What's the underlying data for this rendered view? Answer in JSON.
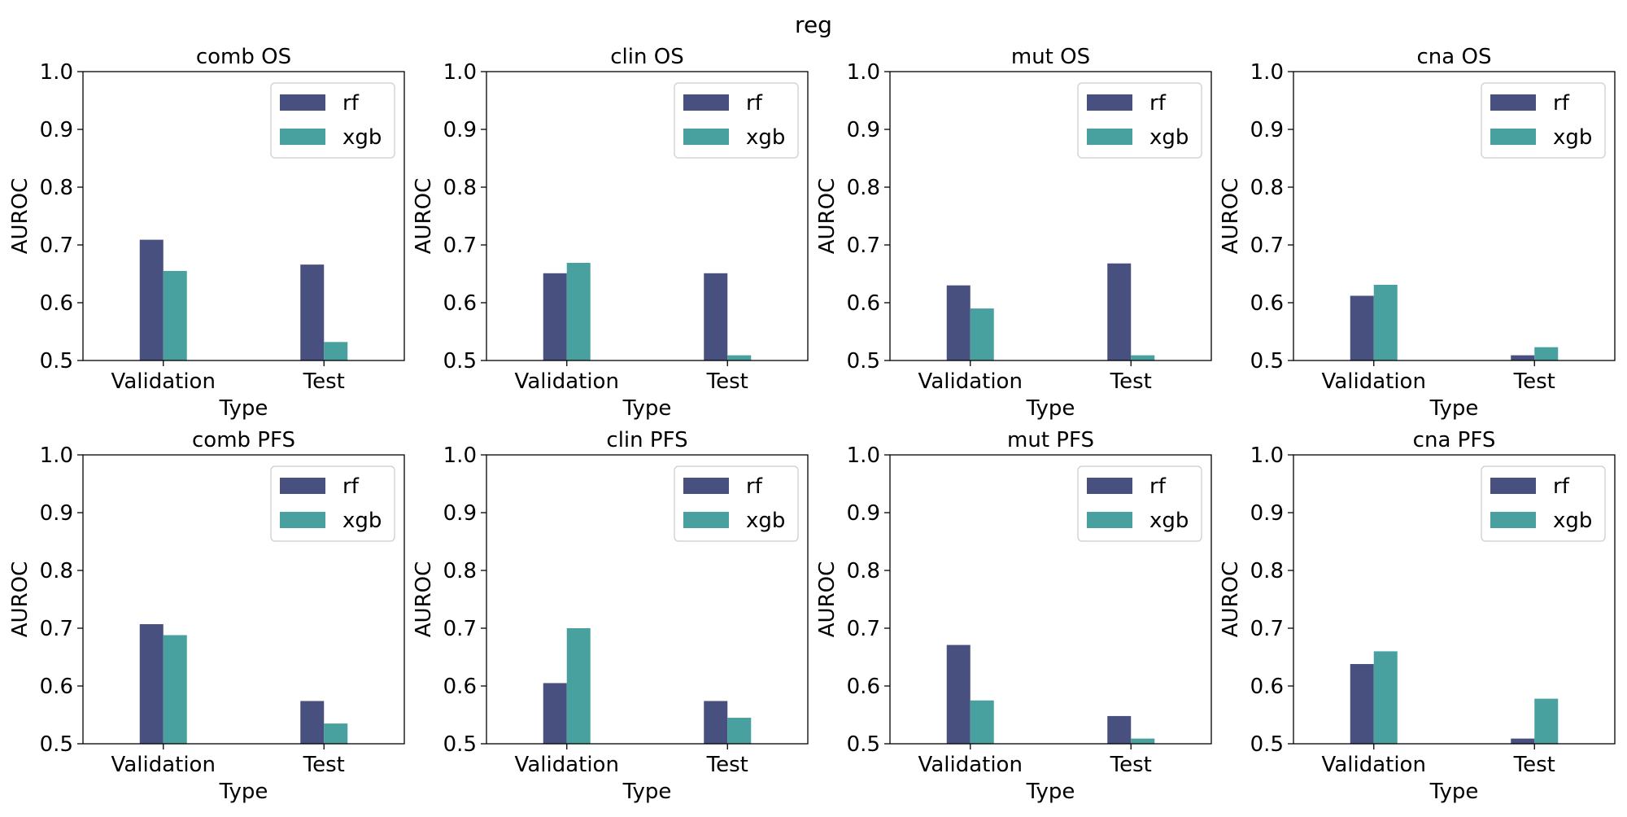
{
  "figure": {
    "suptitle": "reg",
    "colors": {
      "rf": "#48507f",
      "xgb": "#48a09f"
    }
  },
  "chart_data": [
    {
      "type": "bar",
      "title": "comb OS",
      "xlabel": "Type",
      "ylabel": "AUROC",
      "ylim": [
        0.5,
        1.0
      ],
      "yticks": [
        "0.5",
        "0.6",
        "0.7",
        "0.8",
        "0.9",
        "1.0"
      ],
      "categories": [
        "Validation",
        "Test"
      ],
      "legend": "top-right",
      "series": [
        {
          "name": "rf",
          "values": [
            0.709,
            0.666
          ]
        },
        {
          "name": "xgb",
          "values": [
            0.655,
            0.532
          ]
        }
      ]
    },
    {
      "type": "bar",
      "title": "clin OS",
      "xlabel": "Type",
      "ylabel": "AUROC",
      "ylim": [
        0.5,
        1.0
      ],
      "yticks": [
        "0.5",
        "0.6",
        "0.7",
        "0.8",
        "0.9",
        "1.0"
      ],
      "categories": [
        "Validation",
        "Test"
      ],
      "legend": "top-right",
      "series": [
        {
          "name": "rf",
          "values": [
            0.651,
            0.651
          ]
        },
        {
          "name": "xgb",
          "values": [
            0.669,
            0.509
          ]
        }
      ]
    },
    {
      "type": "bar",
      "title": "mut OS",
      "xlabel": "Type",
      "ylabel": "AUROC",
      "ylim": [
        0.5,
        1.0
      ],
      "yticks": [
        "0.5",
        "0.6",
        "0.7",
        "0.8",
        "0.9",
        "1.0"
      ],
      "categories": [
        "Validation",
        "Test"
      ],
      "legend": "top-right",
      "series": [
        {
          "name": "rf",
          "values": [
            0.63,
            0.668
          ]
        },
        {
          "name": "xgb",
          "values": [
            0.59,
            0.509
          ]
        }
      ]
    },
    {
      "type": "bar",
      "title": "cna OS",
      "xlabel": "Type",
      "ylabel": "AUROC",
      "ylim": [
        0.5,
        1.0
      ],
      "yticks": [
        "0.5",
        "0.6",
        "0.7",
        "0.8",
        "0.9",
        "1.0"
      ],
      "categories": [
        "Validation",
        "Test"
      ],
      "legend": "top-right",
      "series": [
        {
          "name": "rf",
          "values": [
            0.612,
            0.509
          ]
        },
        {
          "name": "xgb",
          "values": [
            0.631,
            0.523
          ]
        }
      ]
    },
    {
      "type": "bar",
      "title": "comb PFS",
      "xlabel": "Type",
      "ylabel": "AUROC",
      "ylim": [
        0.5,
        1.0
      ],
      "yticks": [
        "0.5",
        "0.6",
        "0.7",
        "0.8",
        "0.9",
        "1.0"
      ],
      "categories": [
        "Validation",
        "Test"
      ],
      "legend": "top-right",
      "series": [
        {
          "name": "rf",
          "values": [
            0.707,
            0.574
          ]
        },
        {
          "name": "xgb",
          "values": [
            0.688,
            0.535
          ]
        }
      ]
    },
    {
      "type": "bar",
      "title": "clin PFS",
      "xlabel": "Type",
      "ylabel": "AUROC",
      "ylim": [
        0.5,
        1.0
      ],
      "yticks": [
        "0.5",
        "0.6",
        "0.7",
        "0.8",
        "0.9",
        "1.0"
      ],
      "categories": [
        "Validation",
        "Test"
      ],
      "legend": "top-right",
      "series": [
        {
          "name": "rf",
          "values": [
            0.605,
            0.574
          ]
        },
        {
          "name": "xgb",
          "values": [
            0.7,
            0.545
          ]
        }
      ]
    },
    {
      "type": "bar",
      "title": "mut PFS",
      "xlabel": "Type",
      "ylabel": "AUROC",
      "ylim": [
        0.5,
        1.0
      ],
      "yticks": [
        "0.5",
        "0.6",
        "0.7",
        "0.8",
        "0.9",
        "1.0"
      ],
      "categories": [
        "Validation",
        "Test"
      ],
      "legend": "top-right",
      "series": [
        {
          "name": "rf",
          "values": [
            0.671,
            0.548
          ]
        },
        {
          "name": "xgb",
          "values": [
            0.575,
            0.509
          ]
        }
      ]
    },
    {
      "type": "bar",
      "title": "cna PFS",
      "xlabel": "Type",
      "ylabel": "AUROC",
      "ylim": [
        0.5,
        1.0
      ],
      "yticks": [
        "0.5",
        "0.6",
        "0.7",
        "0.8",
        "0.9",
        "1.0"
      ],
      "categories": [
        "Validation",
        "Test"
      ],
      "legend": "top-right",
      "series": [
        {
          "name": "rf",
          "values": [
            0.638,
            0.509
          ]
        },
        {
          "name": "xgb",
          "values": [
            0.66,
            0.578
          ]
        }
      ]
    }
  ]
}
